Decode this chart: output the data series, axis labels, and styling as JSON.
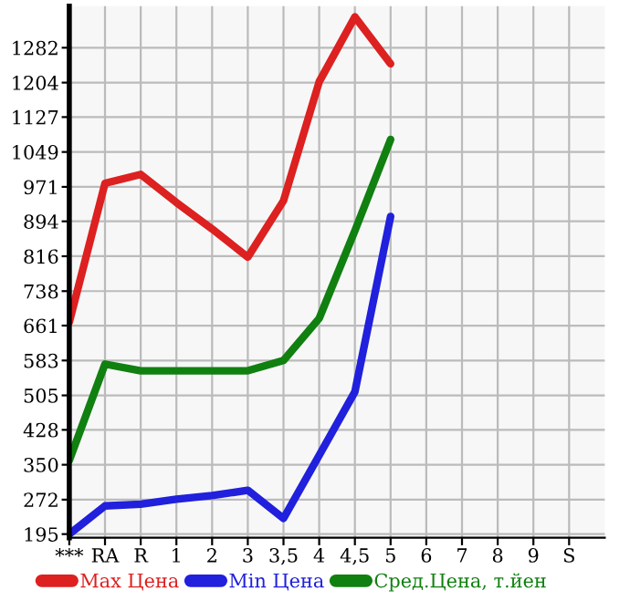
{
  "chart_data": {
    "type": "line",
    "categories": [
      "***",
      "RA",
      "R",
      "1",
      "2",
      "3",
      "3,5",
      "4",
      "4,5",
      "5",
      "6",
      "7",
      "8",
      "9",
      "S"
    ],
    "series": [
      {
        "name": "Max Цена",
        "color": "#dd2020",
        "values": [
          669,
          979,
          999,
          936,
          877,
          814,
          940,
          1206,
          1351,
          1246,
          null,
          null,
          null,
          null,
          null
        ]
      },
      {
        "name": "Min Цена",
        "color": "#2020dd",
        "values": [
          195,
          258,
          262,
          273,
          281,
          293,
          230,
          371,
          513,
          905,
          null,
          null,
          null,
          null,
          null
        ]
      },
      {
        "name": "Сред.Цена, т.йен",
        "color": "#108010",
        "values": [
          360,
          575,
          560,
          560,
          560,
          560,
          583,
          677,
          873,
          1077,
          null,
          null,
          null,
          null,
          null
        ]
      }
    ],
    "ylim": [
      187,
      1375
    ],
    "yticks": [
      195,
      272,
      350,
      428,
      505,
      583,
      661,
      738,
      816,
      894,
      971,
      1049,
      1127,
      1204,
      1282
    ],
    "grid": true,
    "legend": "bottom",
    "marker": "none",
    "line_style": "solid"
  }
}
